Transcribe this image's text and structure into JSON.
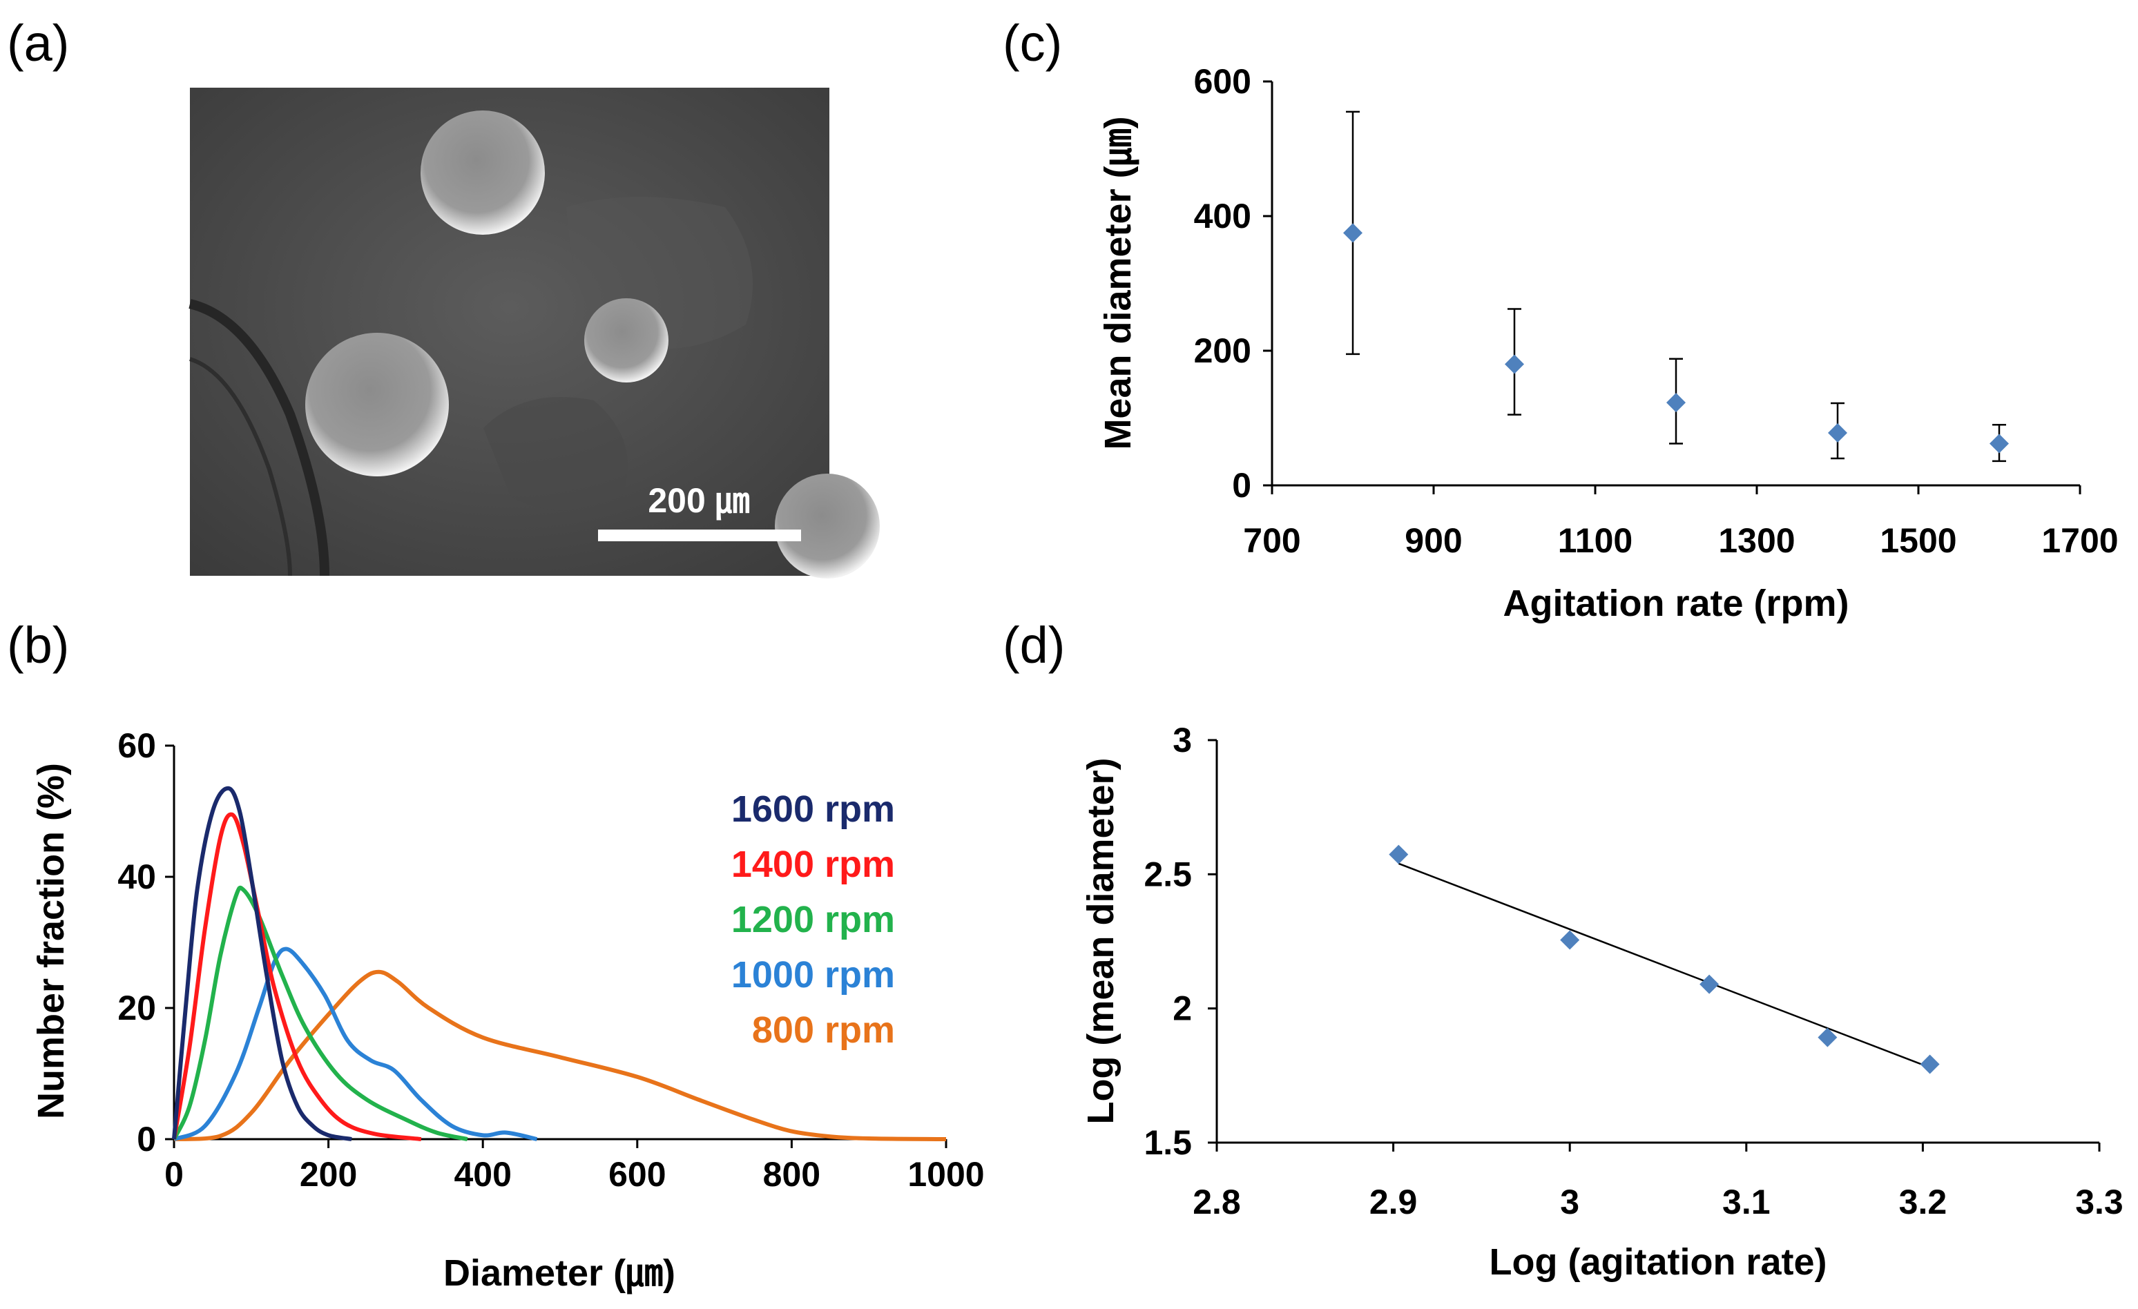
{
  "panels": {
    "a": {
      "label": "(a)",
      "scale_bar": "200 ㎛"
    },
    "b": {
      "label": "(b)"
    },
    "c": {
      "label": "(c)"
    },
    "d": {
      "label": "(d)"
    }
  },
  "colors": {
    "rpm1600": "#1a2a6c",
    "rpm1400": "#ff1a1a",
    "rpm1200": "#22b24c",
    "rpm1000": "#2b82d6",
    "rpm800": "#e8731a",
    "marker": "#4f81bd"
  },
  "chart_data": [
    {
      "id": "b",
      "type": "line",
      "title": "",
      "xlabel": "Diameter (㎛)",
      "ylabel": "Number fraction (%)",
      "xlim": [
        0,
        1000
      ],
      "ylim": [
        0,
        60
      ],
      "xticks": [
        "0",
        "200",
        "400",
        "600",
        "800",
        "1000"
      ],
      "yticks": [
        "0",
        "20",
        "40",
        "60"
      ],
      "legend_position": "top-right",
      "series": [
        {
          "name": "1600 rpm",
          "color_key": "rpm1600",
          "points": [
            [
              0,
              0
            ],
            [
              15,
              20
            ],
            [
              30,
              38
            ],
            [
              50,
              50
            ],
            [
              70,
              53.5
            ],
            [
              85,
              50
            ],
            [
              100,
              40
            ],
            [
              120,
              25
            ],
            [
              140,
              12
            ],
            [
              160,
              5
            ],
            [
              180,
              2
            ],
            [
              200,
              0.6
            ],
            [
              230,
              0
            ]
          ]
        },
        {
          "name": "1400 rpm",
          "color_key": "rpm1400",
          "points": [
            [
              0,
              0
            ],
            [
              20,
              14
            ],
            [
              40,
              32
            ],
            [
              60,
              46
            ],
            [
              75,
              49.5
            ],
            [
              90,
              45
            ],
            [
              110,
              34
            ],
            [
              130,
              23
            ],
            [
              160,
              12
            ],
            [
              190,
              6
            ],
            [
              220,
              2.5
            ],
            [
              260,
              0.8
            ],
            [
              320,
              0
            ]
          ]
        },
        {
          "name": "1200 rpm",
          "color_key": "rpm1200",
          "points": [
            [
              0,
              0
            ],
            [
              20,
              5
            ],
            [
              40,
              15
            ],
            [
              60,
              28
            ],
            [
              80,
              37
            ],
            [
              90,
              38
            ],
            [
              110,
              34
            ],
            [
              140,
              25
            ],
            [
              170,
              17
            ],
            [
              210,
              10
            ],
            [
              250,
              6
            ],
            [
              300,
              3
            ],
            [
              340,
              1
            ],
            [
              380,
              0
            ]
          ]
        },
        {
          "name": "1000 rpm",
          "color_key": "rpm1000",
          "points": [
            [
              0,
              0
            ],
            [
              40,
              2
            ],
            [
              80,
              10
            ],
            [
              110,
              20
            ],
            [
              130,
              27
            ],
            [
              145,
              29
            ],
            [
              165,
              27
            ],
            [
              195,
              22
            ],
            [
              225,
              15
            ],
            [
              255,
              12
            ],
            [
              285,
              10.5
            ],
            [
              320,
              6
            ],
            [
              360,
              2
            ],
            [
              400,
              0.6
            ],
            [
              430,
              1
            ],
            [
              470,
              0
            ]
          ]
        },
        {
          "name": "800 rpm",
          "color_key": "rpm800",
          "points": [
            [
              0,
              0
            ],
            [
              60,
              0.5
            ],
            [
              100,
              4
            ],
            [
              150,
              12
            ],
            [
              200,
              19
            ],
            [
              240,
              24
            ],
            [
              265,
              25.5
            ],
            [
              290,
              24
            ],
            [
              330,
              20
            ],
            [
              400,
              15.5
            ],
            [
              500,
              12.5
            ],
            [
              600,
              9.5
            ],
            [
              680,
              6
            ],
            [
              750,
              3
            ],
            [
              800,
              1.2
            ],
            [
              850,
              0.4
            ],
            [
              900,
              0.1
            ],
            [
              1000,
              0
            ]
          ]
        }
      ]
    },
    {
      "id": "c",
      "type": "scatter",
      "title": "",
      "xlabel": "Agitation rate (rpm)",
      "ylabel": "Mean diameter (㎛)",
      "xlim": [
        700,
        1700
      ],
      "ylim": [
        0,
        600
      ],
      "xticks": [
        "700",
        "900",
        "1100",
        "1300",
        "1500",
        "1700"
      ],
      "yticks": [
        "0",
        "200",
        "400",
        "600"
      ],
      "points": [
        {
          "x": 800,
          "y": 375,
          "err_low": 195,
          "err_high": 555
        },
        {
          "x": 1000,
          "y": 180,
          "err_low": 105,
          "err_high": 262
        },
        {
          "x": 1200,
          "y": 123,
          "err_low": 62,
          "err_high": 188
        },
        {
          "x": 1400,
          "y": 78,
          "err_low": 40,
          "err_high": 122
        },
        {
          "x": 1600,
          "y": 62,
          "err_low": 36,
          "err_high": 90
        }
      ]
    },
    {
      "id": "d",
      "type": "scatter",
      "title": "",
      "xlabel": "Log (agitation rate)",
      "ylabel": "Log (mean diameter)",
      "xlim": [
        2.8,
        3.3
      ],
      "ylim": [
        1.5,
        3
      ],
      "xticks": [
        "2.8",
        "2.9",
        "3",
        "3.1",
        "3.2",
        "3.3"
      ],
      "yticks": [
        "1.5",
        "2",
        "2.5",
        "3"
      ],
      "points": [
        {
          "x": 2.903,
          "y": 2.574
        },
        {
          "x": 3.0,
          "y": 2.255
        },
        {
          "x": 3.079,
          "y": 2.09
        },
        {
          "x": 3.146,
          "y": 1.892
        },
        {
          "x": 3.204,
          "y": 1.792
        }
      ],
      "trendline": {
        "x": [
          2.903,
          3.204
        ],
        "y": [
          2.54,
          1.78
        ]
      }
    }
  ]
}
